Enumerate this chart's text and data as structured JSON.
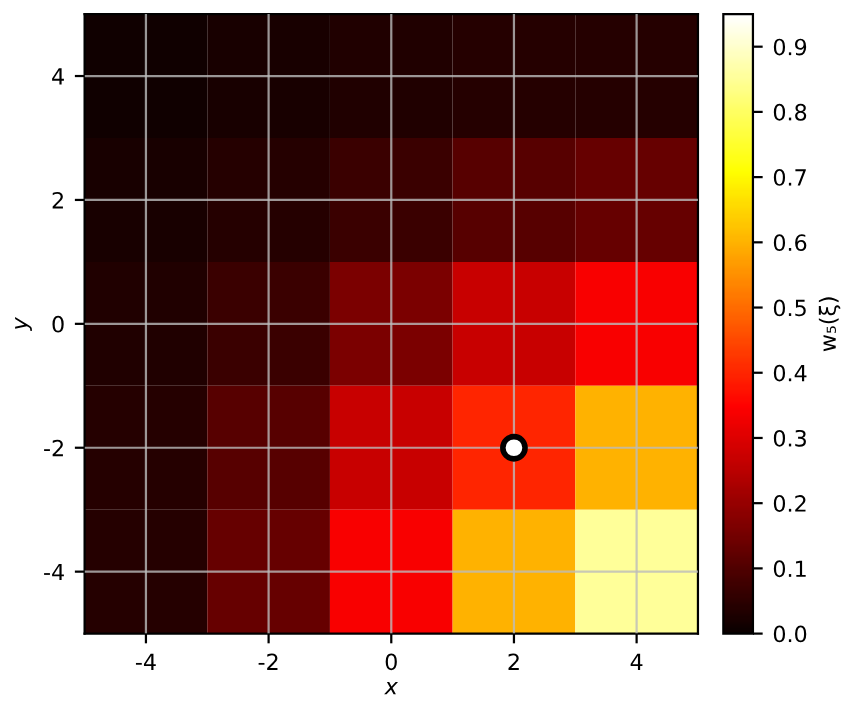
{
  "chart_data": {
    "type": "heatmap",
    "xlabel": "x",
    "ylabel": "y",
    "clabel": "w₅(ξ)",
    "categories": [
      "-4",
      "-2",
      "0",
      "2",
      "4"
    ],
    "y_categories": [
      "4",
      "2",
      "0",
      "-2",
      "-4"
    ],
    "cells": [
      [
        0.01,
        0.02,
        0.03,
        0.04,
        0.04
      ],
      [
        0.02,
        0.04,
        0.07,
        0.11,
        0.13
      ],
      [
        0.03,
        0.07,
        0.16,
        0.27,
        0.34
      ],
      [
        0.04,
        0.11,
        0.27,
        0.4,
        0.6
      ],
      [
        0.04,
        0.13,
        0.34,
        0.6,
        0.85
      ]
    ],
    "clim": [
      0,
      0.95
    ],
    "cticks": [
      {
        "value": 0,
        "label": "0.0"
      },
      0.1,
      0.2,
      0.3,
      0.4,
      0.5,
      0.6,
      0.7,
      0.8,
      0.9
    ],
    "grid": true
  }
}
